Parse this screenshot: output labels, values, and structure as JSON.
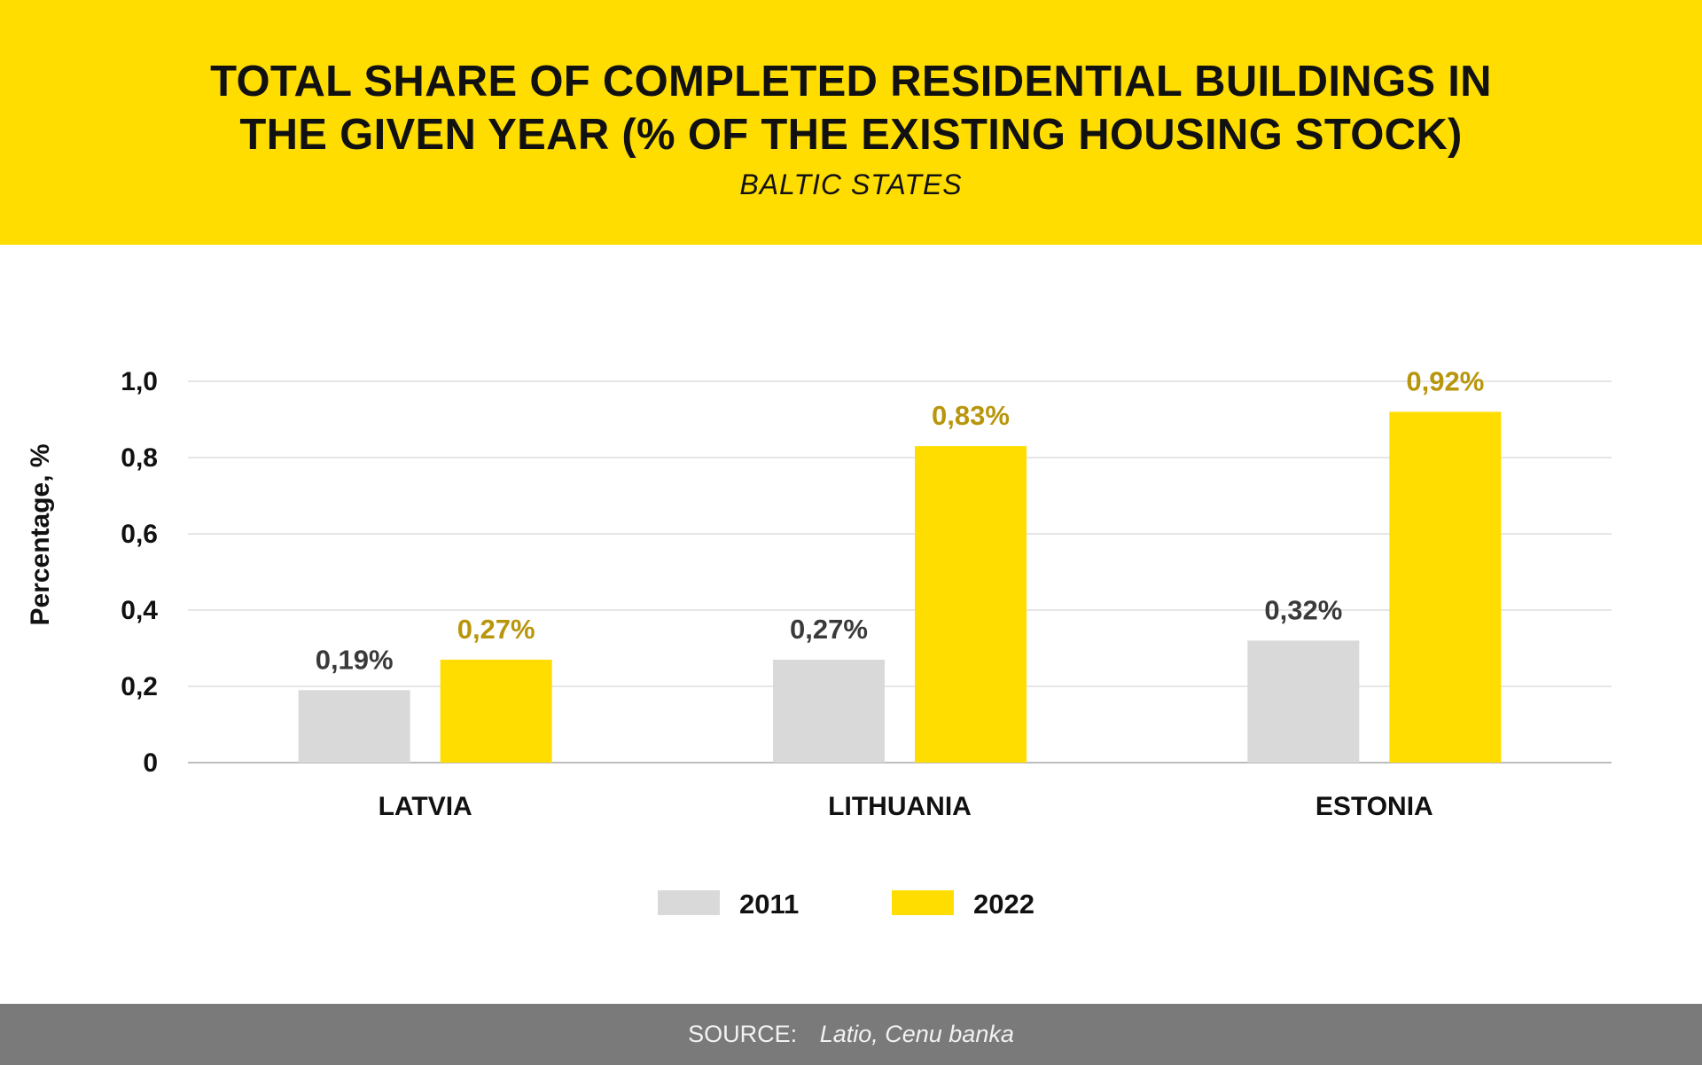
{
  "header": {
    "title_line1": "TOTAL SHARE OF COMPLETED RESIDENTIAL BUILDINGS IN",
    "title_line2": "THE GIVEN YEAR (% OF THE EXISTING HOUSING STOCK)",
    "subtitle": "BALTIC STATES"
  },
  "footer": {
    "source_label": "SOURCE:",
    "source_value": "Latio, Cenu banka"
  },
  "colors": {
    "accent": "#ffdd00",
    "series_2011": "#d9d9d9",
    "series_2022": "#ffdd00",
    "label_2011": "#3a3a3a",
    "label_2022": "#b8960c",
    "footer_bg": "#7a7a7a"
  },
  "chart_data": {
    "type": "bar",
    "title": "TOTAL SHARE OF COMPLETED RESIDENTIAL BUILDINGS IN THE GIVEN YEAR (% OF THE EXISTING HOUSING STOCK)",
    "subtitle": "BALTIC STATES",
    "categories": [
      "LATVIA",
      "LITHUANIA",
      "ESTONIA"
    ],
    "series": [
      {
        "name": "2011",
        "values": [
          0.19,
          0.27,
          0.32
        ],
        "labels": [
          "0,19%",
          "0,27%",
          "0,32%"
        ],
        "color": "#d9d9d9"
      },
      {
        "name": "2022",
        "values": [
          0.27,
          0.83,
          0.92
        ],
        "labels": [
          "0,27%",
          "0,83%",
          "0,92%"
        ],
        "color": "#ffdd00"
      }
    ],
    "xlabel": "",
    "ylabel": "Percentage, %",
    "ylim": [
      0,
      1.0
    ],
    "yticks": [
      0,
      0.2,
      0.4,
      0.6,
      0.8,
      1.0
    ],
    "ytick_labels": [
      "0",
      "0,2",
      "0,4",
      "0,6",
      "0,8",
      "1,0"
    ],
    "grid": true,
    "legend_position": "bottom"
  }
}
